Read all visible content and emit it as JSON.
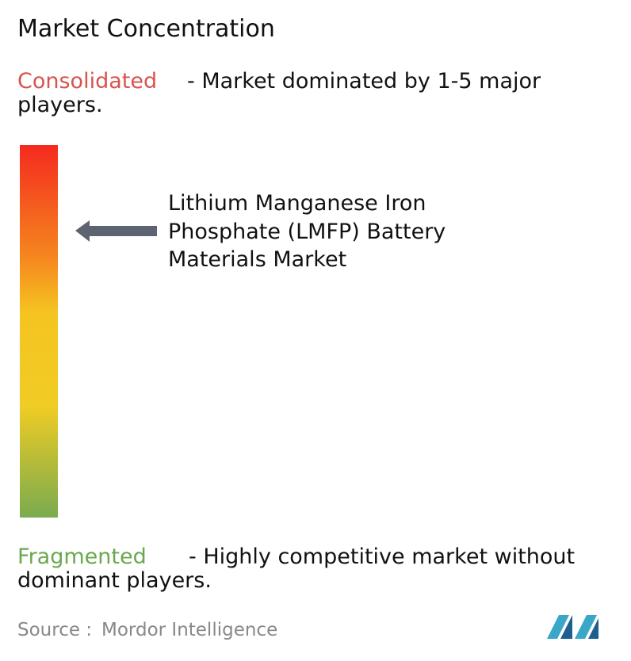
{
  "header": {
    "title": "Market Concentration"
  },
  "consolidated": {
    "label": "Consolidated",
    "description_lines": [
      "- Market dominated by 1-5 major",
      "players."
    ]
  },
  "market": {
    "lines": [
      "Lithium Manganese Iron",
      "Phosphate (LMFP) Battery",
      "Materials Market"
    ]
  },
  "fragmented": {
    "label": "Fragmented",
    "description_lines": [
      "- Highly competitive market without",
      "dominant players."
    ]
  },
  "source": {
    "prefix": "Source :",
    "name": "Mordor Intelligence"
  }
}
